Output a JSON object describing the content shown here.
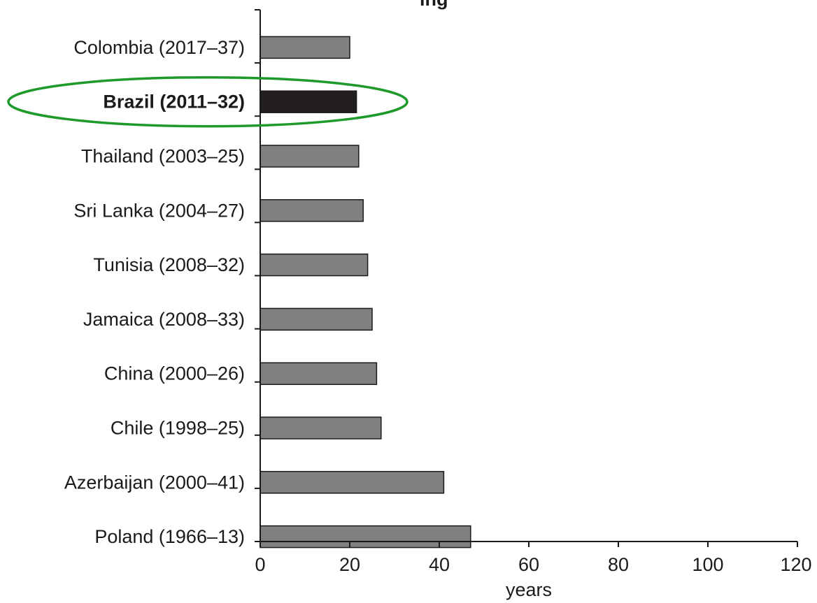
{
  "chart_data": {
    "type": "bar",
    "orientation": "horizontal",
    "title_fragment": "ing",
    "categories": [
      "Colombia (2017–37)",
      "Brazil (2011–32)",
      "Thailand (2003–25)",
      "Sri Lanka (2004–27)",
      "Tunisia (2008–32)",
      "Jamaica (2008–33)",
      "China (2000–26)",
      "Chile (1998–25)",
      "Azerbaijan (2000–41)",
      "Poland (1966–13)"
    ],
    "values": [
      20,
      21.5,
      22,
      23,
      24,
      25,
      26,
      27,
      41,
      47
    ],
    "highlighted_category": "Brazil (2011–32)",
    "xlabel": "years",
    "ylabel": "",
    "xlim": [
      0,
      120
    ],
    "xticks": [
      "0",
      "20",
      "40",
      "60",
      "80",
      "100",
      "120"
    ],
    "grid": false,
    "colors": {
      "bar": "#808080",
      "bar_highlight": "#231f20",
      "bar_stroke": "#1a1a1a",
      "ellipse": "#1e9a2a",
      "axis": "#1a1a1a"
    }
  }
}
